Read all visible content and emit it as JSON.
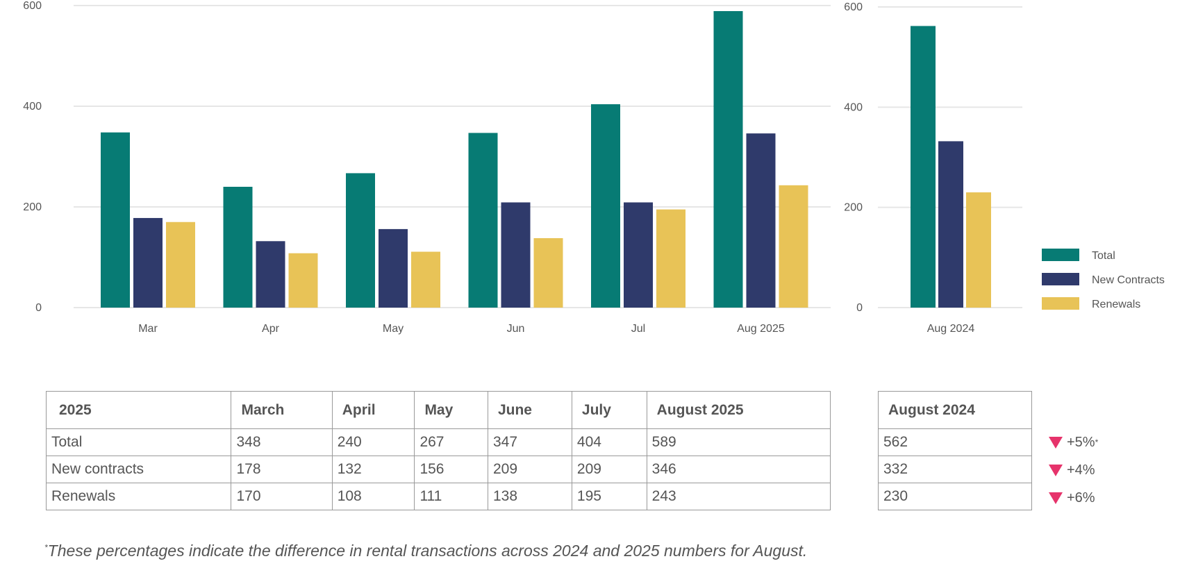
{
  "chart_data": [
    {
      "type": "bar",
      "categories": [
        "Mar",
        "Apr",
        "May",
        "Jun",
        "Jul",
        "Aug 2025"
      ],
      "series": [
        {
          "name": "Total",
          "values": [
            348,
            240,
            267,
            347,
            404,
            589
          ]
        },
        {
          "name": "New Contracts",
          "values": [
            178,
            132,
            156,
            209,
            209,
            346
          ]
        },
        {
          "name": "Renewals",
          "values": [
            170,
            108,
            111,
            138,
            195,
            243
          ]
        }
      ],
      "ylim": [
        0,
        600
      ],
      "yticks": [
        0,
        200,
        400,
        600
      ],
      "grid": true
    },
    {
      "type": "bar",
      "categories": [
        "Aug 2024"
      ],
      "series": [
        {
          "name": "Total",
          "values": [
            562
          ]
        },
        {
          "name": "New Contracts",
          "values": [
            332
          ]
        },
        {
          "name": "Renewals",
          "values": [
            230
          ]
        }
      ],
      "ylim": [
        0,
        600
      ],
      "yticks": [
        0,
        200,
        400,
        600
      ],
      "grid": true,
      "legend": "right"
    }
  ],
  "colors": {
    "total": "#077b74",
    "new_contracts": "#2f3a6b",
    "renewals": "#e8c357",
    "decrease": "#e6336b"
  },
  "legend": [
    "Total",
    "New Contracts",
    "Renewals"
  ],
  "table_2025": {
    "headers": [
      "2025",
      "March",
      "April",
      "May",
      "June",
      "July",
      "August 2025"
    ],
    "rows": [
      {
        "label": "Total",
        "values": [
          "348",
          "240",
          "267",
          "347",
          "404",
          "589"
        ]
      },
      {
        "label": "New contracts",
        "values": [
          "178",
          "132",
          "156",
          "209",
          "209",
          "346"
        ]
      },
      {
        "label": "Renewals",
        "values": [
          "170",
          "108",
          "111",
          "138",
          "195",
          "243"
        ]
      }
    ]
  },
  "table_2024": {
    "header": "August 2024",
    "values": [
      "562",
      "332",
      "230"
    ]
  },
  "changes": [
    "+5%",
    "+4%",
    "+6%"
  ],
  "footnote": {
    "marker": "*",
    "text": "These percentages indicate the difference in rental transactions across 2024 and 2025 numbers for August."
  }
}
